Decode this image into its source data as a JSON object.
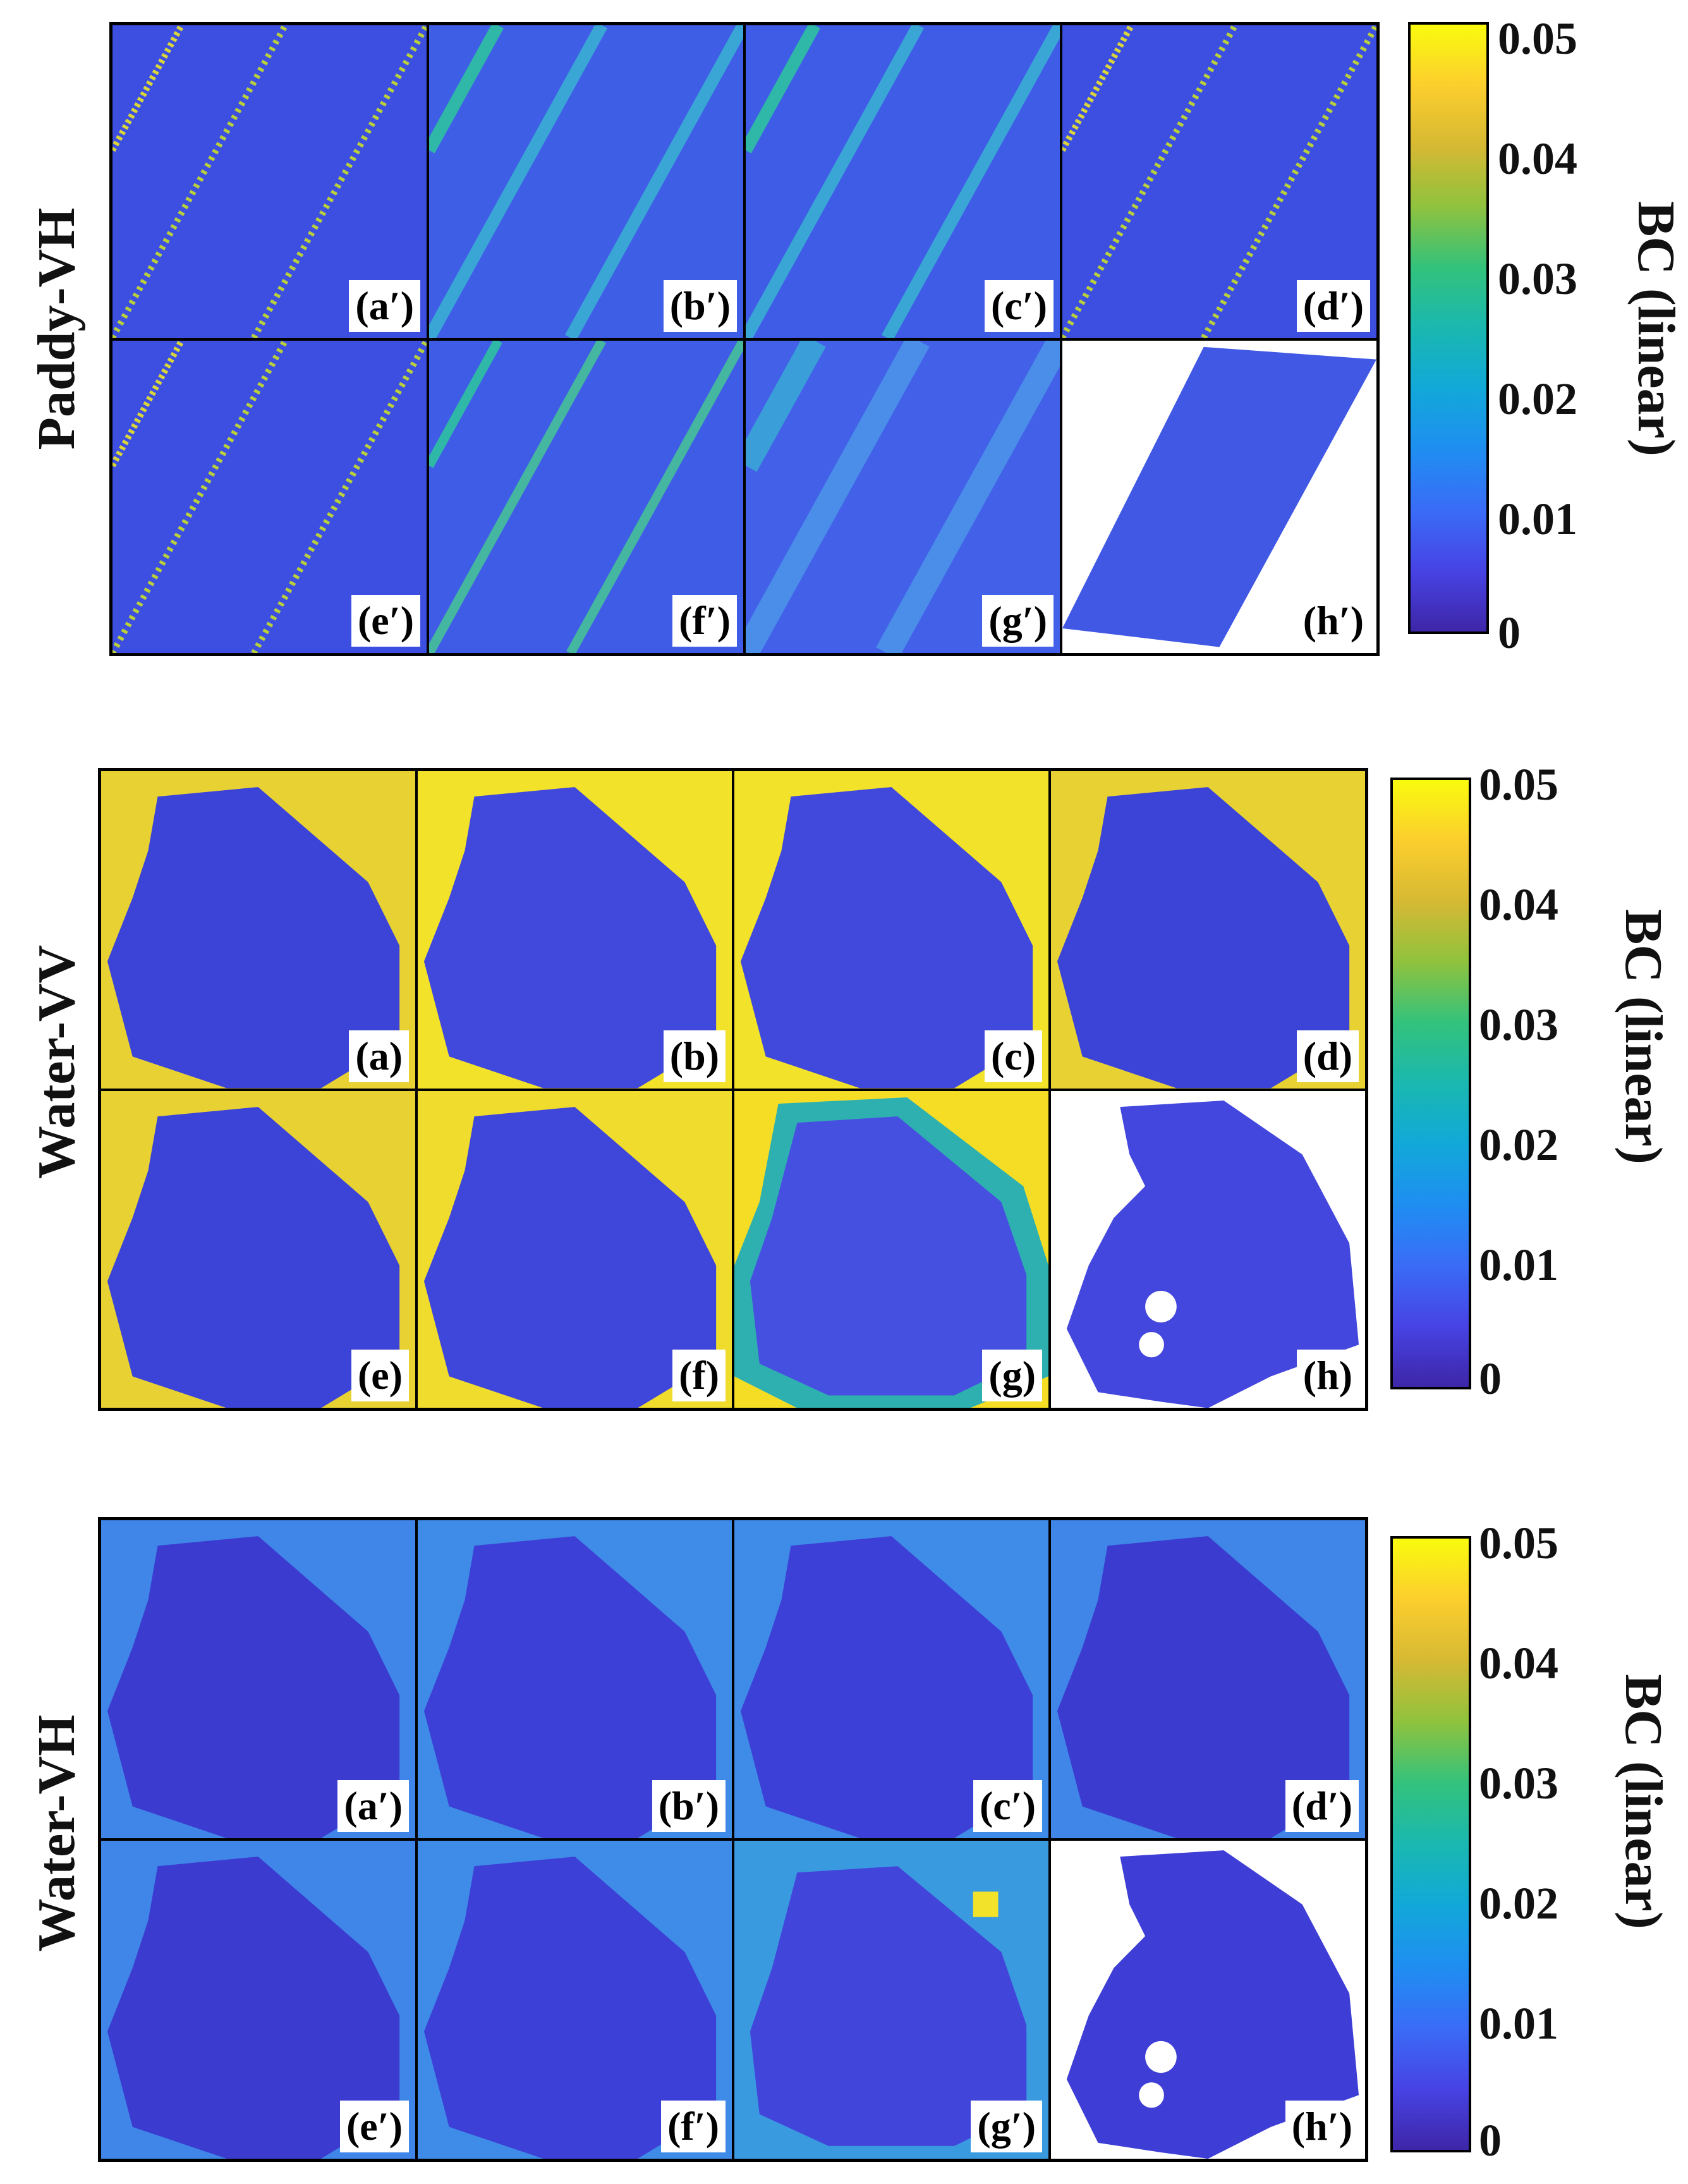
{
  "sections": [
    {
      "row_label": "Paddy-VH",
      "panel_labels": [
        "(a′)",
        "(b′)",
        "(c′)",
        "(d′)",
        "(e′)",
        "(f′)",
        "(g′)",
        "(h′)"
      ],
      "colorbar": {
        "title": "BC (linear)",
        "ticks": [
          "0.05",
          "0.04",
          "0.03",
          "0.02",
          "0.01",
          "0"
        ]
      }
    },
    {
      "row_label": "Water-VV",
      "panel_labels": [
        "(a)",
        "(b)",
        "(c)",
        "(d)",
        "(e)",
        "(f)",
        "(g)",
        "(h)"
      ],
      "colorbar": {
        "title": "BC (linear)",
        "ticks": [
          "0.05",
          "0.04",
          "0.03",
          "0.02",
          "0.01",
          "0"
        ]
      }
    },
    {
      "row_label": "Water-VH",
      "panel_labels": [
        "(a′)",
        "(b′)",
        "(c′)",
        "(d′)",
        "(e′)",
        "(f′)",
        "(g′)",
        "(h′)"
      ],
      "colorbar": {
        "title": "BC (linear)",
        "ticks": [
          "0.05",
          "0.04",
          "0.03",
          "0.02",
          "0.01",
          "0"
        ]
      }
    }
  ],
  "colormap": {
    "low": "#3e26a8",
    "high": "#f9fb0e"
  },
  "colorbar_range": [
    0,
    0.05
  ]
}
